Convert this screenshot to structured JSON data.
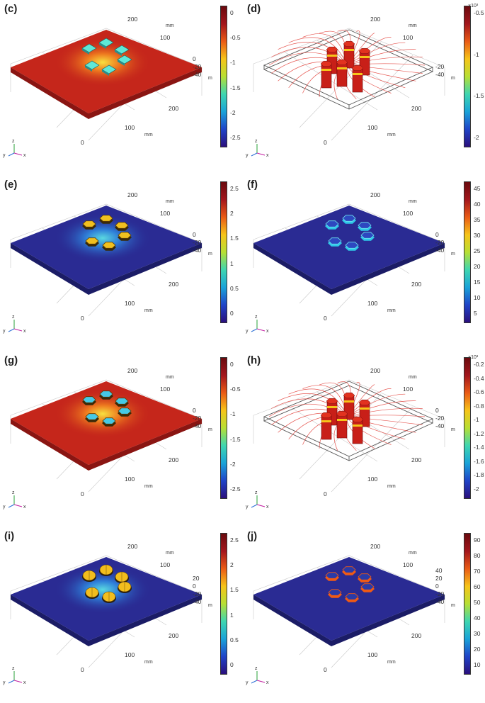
{
  "colormaps": {
    "jet": [
      "#2a0f7c",
      "#1f44c8",
      "#1aa3d8",
      "#3fd6b0",
      "#b7df34",
      "#f6c419",
      "#ea5b16",
      "#a3161c",
      "#6a0a0e"
    ]
  },
  "panels": [
    {
      "label": "(c)",
      "style": "pads",
      "tile": "#5fe8d6",
      "glow": true,
      "ring": false,
      "frame": false,
      "axis_ticks": {
        "x_a": "0",
        "x_b": "100",
        "x_c": "200",
        "x_unit": "mm",
        "y_a": "100",
        "y_b": "200",
        "y_unit": "mm",
        "z_ticks": [
          "0",
          "-20",
          "-40"
        ],
        "z_unit": "m"
      },
      "colorbar": {
        "multiplier": "",
        "ticks": [
          "0",
          "-0.5",
          "-1",
          "-1.5",
          "-2",
          "-2.5"
        ]
      }
    },
    {
      "label": "(d)",
      "style": "streams",
      "tile": "#c81f18",
      "glow": false,
      "ring": false,
      "frame": true,
      "axis_ticks": {
        "x_a": "0",
        "x_b": "100",
        "x_c": "200",
        "x_unit": "mm",
        "y_a": "100",
        "y_b": "200",
        "y_unit": "mm",
        "z_ticks": [
          "-20",
          "-40"
        ],
        "z_unit": "m"
      },
      "colorbar": {
        "multiplier": "×10³",
        "ticks": [
          "-0.5",
          "-1",
          "-1.5",
          "-2"
        ]
      }
    },
    {
      "label": "(e)",
      "style": "hex",
      "tile": "#f0c020",
      "glow": true,
      "ring": false,
      "frame": false,
      "axis_ticks": {
        "x_a": "0",
        "x_b": "100",
        "x_c": "200",
        "x_unit": "mm",
        "y_a": "100",
        "y_b": "200",
        "y_unit": "mm",
        "z_ticks": [
          "0",
          "-20",
          "-40"
        ],
        "z_unit": "m"
      },
      "colorbar": {
        "multiplier": "",
        "ticks": [
          "2.5",
          "2",
          "1.5",
          "1",
          "0.5",
          "0"
        ]
      }
    },
    {
      "label": "(f)",
      "style": "hex",
      "tile": "#2d48c0",
      "glow": false,
      "ring": true,
      "frame": false,
      "axis_ticks": {
        "x_a": "0",
        "x_b": "100",
        "x_c": "200",
        "x_unit": "mm",
        "y_a": "100",
        "y_b": "200",
        "y_unit": "mm",
        "z_ticks": [
          "0",
          "-20",
          "-40"
        ],
        "z_unit": "m"
      },
      "colorbar": {
        "multiplier": "",
        "ticks": [
          "45",
          "40",
          "35",
          "30",
          "25",
          "20",
          "15",
          "10",
          "5"
        ]
      }
    },
    {
      "label": "(g)",
      "style": "hex",
      "tile": "#46c9e6",
      "glow": true,
      "ring": false,
      "frame": false,
      "axis_ticks": {
        "x_a": "0",
        "x_b": "100",
        "x_c": "200",
        "x_unit": "mm",
        "y_a": "100",
        "y_b": "200",
        "y_unit": "mm",
        "z_ticks": [
          "0",
          "-20",
          "-40"
        ],
        "z_unit": "m"
      },
      "colorbar": {
        "multiplier": "",
        "ticks": [
          "0",
          "-0.5",
          "-1",
          "-1.5",
          "-2",
          "-2.5"
        ]
      }
    },
    {
      "label": "(h)",
      "style": "streams",
      "tile": "#c81f18",
      "glow": false,
      "ring": false,
      "frame": true,
      "axis_ticks": {
        "x_a": "0",
        "x_b": "100",
        "x_c": "200",
        "x_unit": "mm",
        "y_a": "100",
        "y_b": "200",
        "y_unit": "mm",
        "z_ticks": [
          "0",
          "-20",
          "-40"
        ],
        "z_unit": "m"
      },
      "colorbar": {
        "multiplier": "×10³",
        "ticks": [
          "-0.2",
          "-0.4",
          "-0.6",
          "-0.8",
          "-1",
          "-1.2",
          "-1.4",
          "-1.6",
          "-1.8",
          "-2"
        ]
      }
    },
    {
      "label": "(i)",
      "style": "dome",
      "tile": "#f2be1e",
      "glow": true,
      "ring": false,
      "frame": false,
      "axis_ticks": {
        "x_a": "0",
        "x_b": "100",
        "x_c": "200",
        "x_unit": "mm",
        "y_a": "100",
        "y_b": "200",
        "y_unit": "mm",
        "z_ticks": [
          "20",
          "0",
          "-20",
          "-40"
        ],
        "z_unit": "m"
      },
      "colorbar": {
        "multiplier": "",
        "ticks": [
          "2.5",
          "2",
          "1.5",
          "1",
          "0.5",
          "0"
        ]
      }
    },
    {
      "label": "(j)",
      "style": "hex",
      "tile": "#2a3aa8",
      "glow": false,
      "ring": true,
      "ringColor": "#f05a14",
      "frame": false,
      "axis_ticks": {
        "x_a": "0",
        "x_b": "100",
        "x_c": "200",
        "x_unit": "mm",
        "y_a": "100",
        "y_b": "200",
        "y_unit": "mm",
        "z_ticks": [
          "40",
          "20",
          "0",
          "-20",
          "-40"
        ],
        "z_unit": "m"
      },
      "colorbar": {
        "multiplier": "",
        "ticks": [
          "90",
          "80",
          "70",
          "60",
          "50",
          "40",
          "30",
          "20",
          "10"
        ]
      }
    }
  ],
  "triad": {
    "y": "y",
    "z": "z",
    "x": "x"
  }
}
